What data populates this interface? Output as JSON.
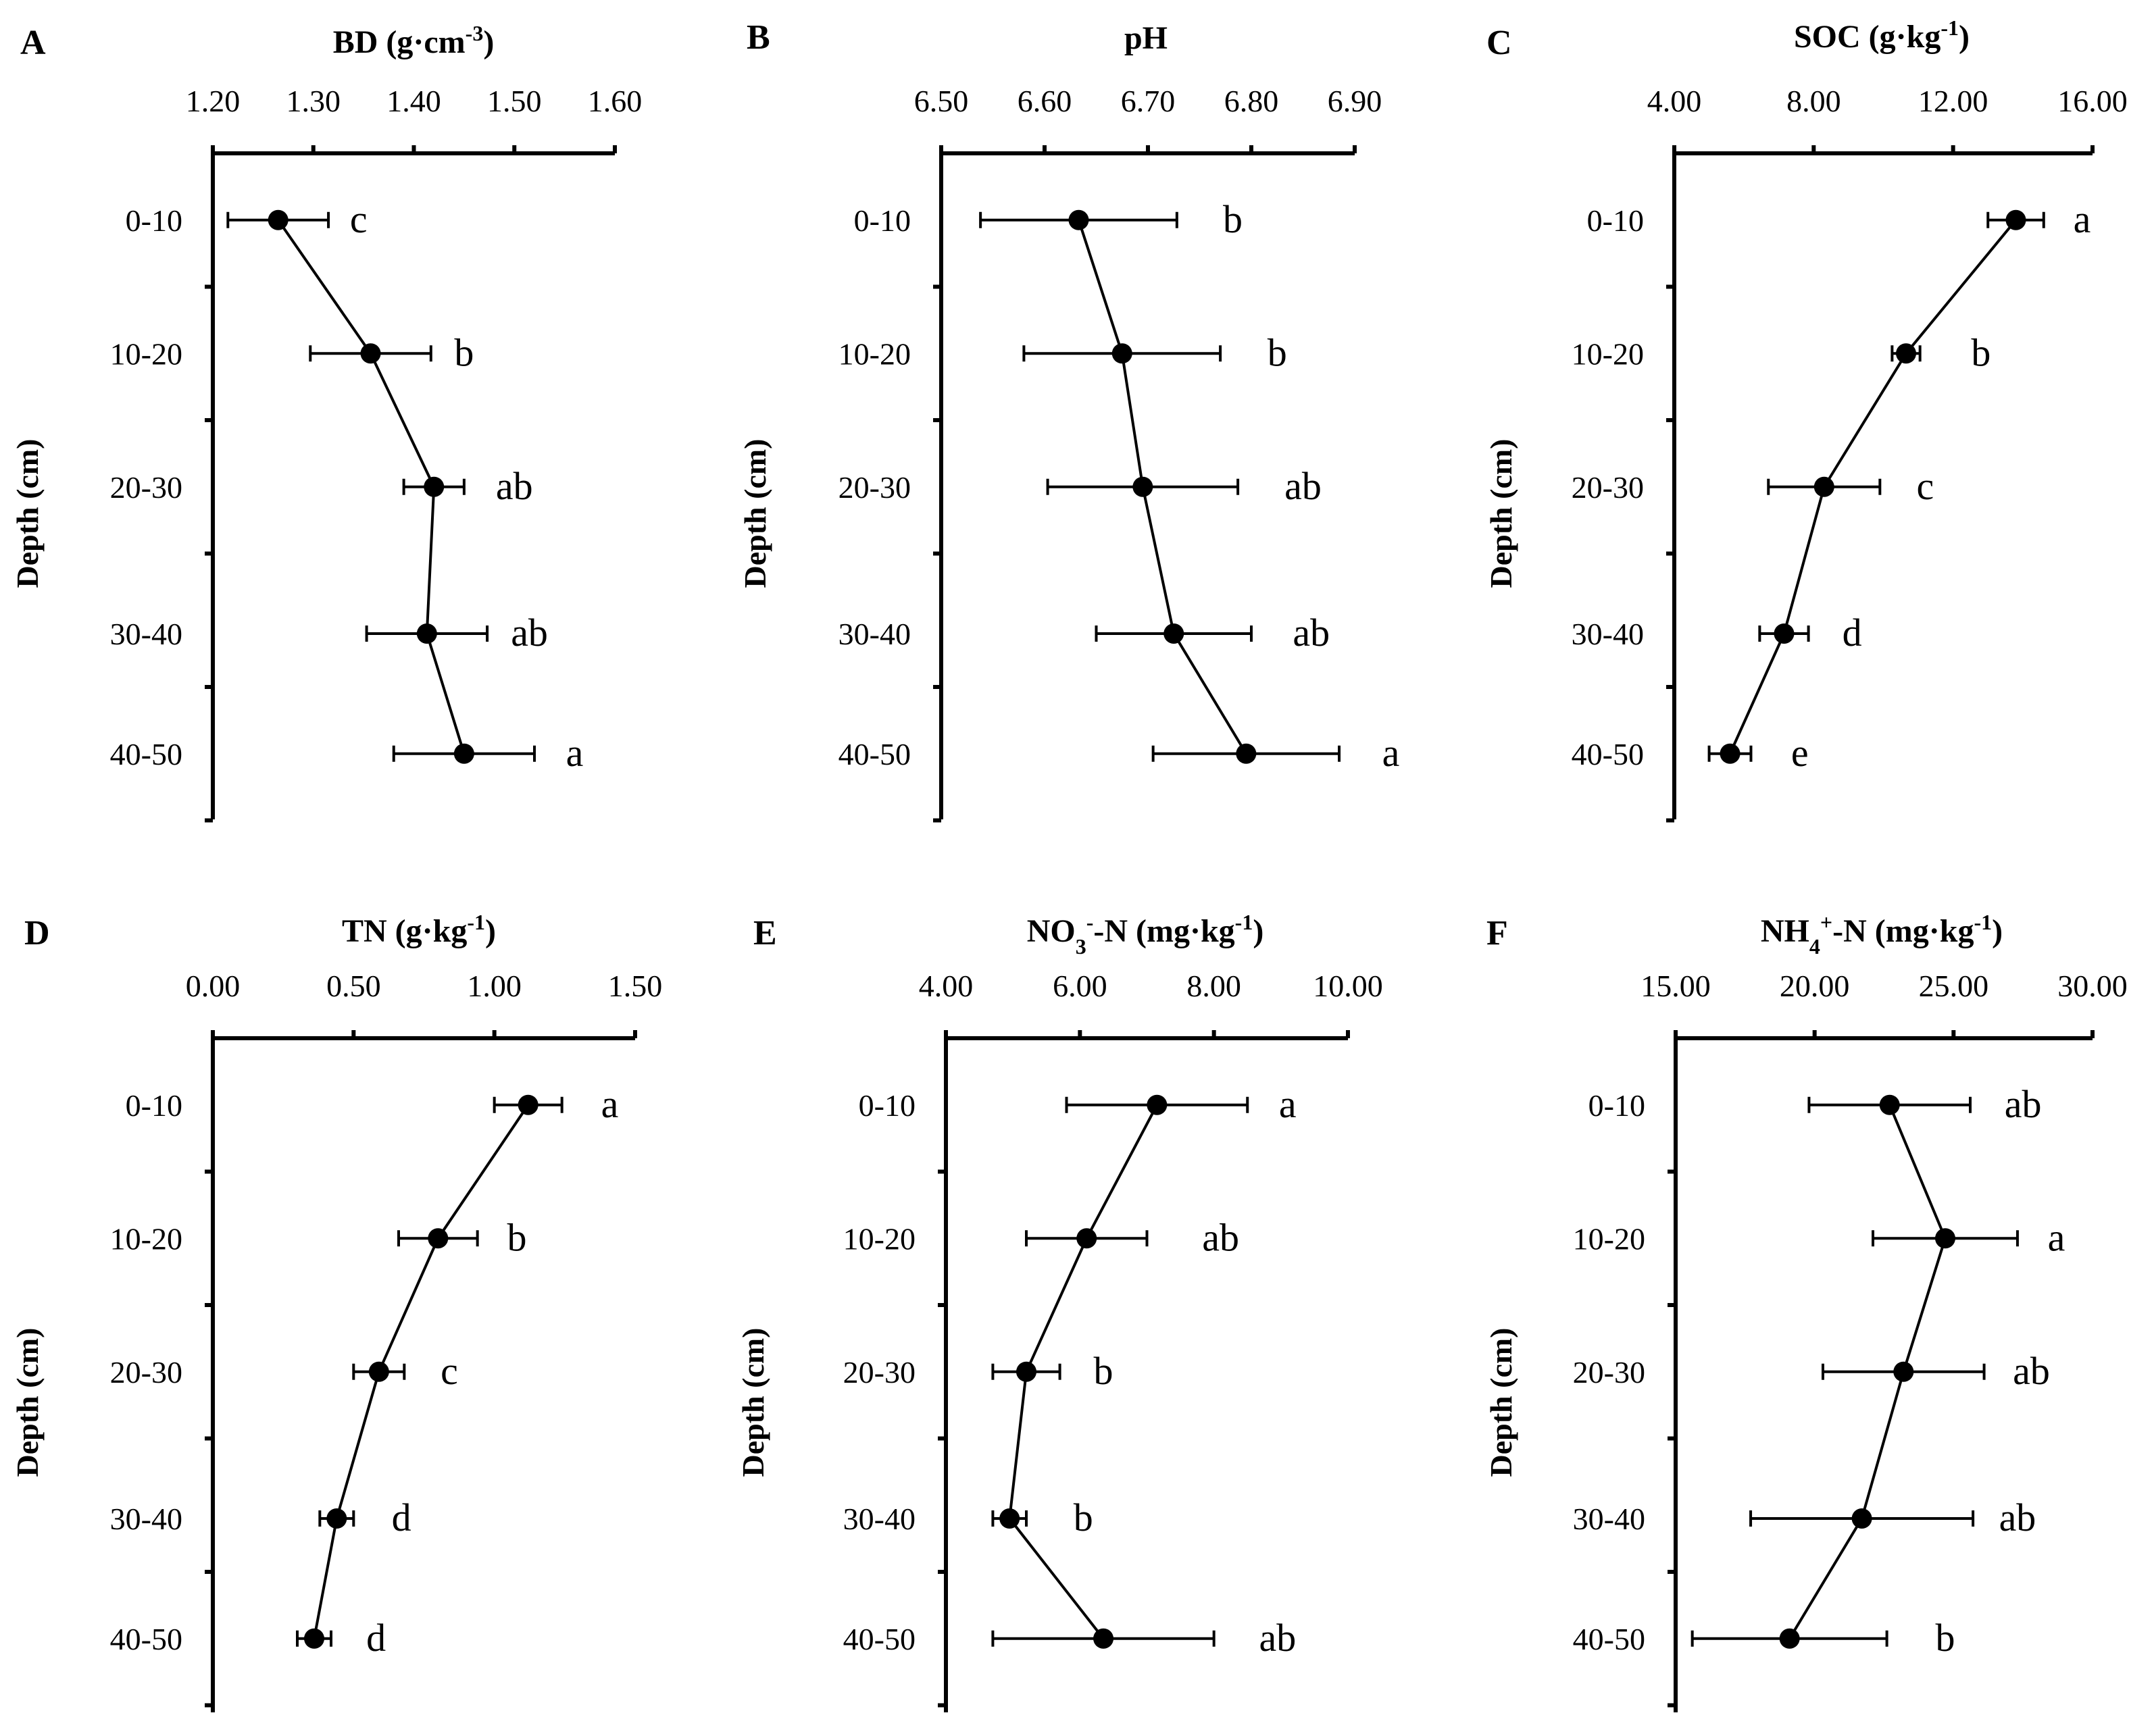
{
  "chart_data": [
    {
      "type": "line",
      "panel": "A",
      "title": "BD (g·cm⁻³)",
      "title_parts": [
        {
          "t": "BD (g·cm"
        },
        {
          "t": "-3",
          "sup": true
        },
        {
          "t": ")"
        }
      ],
      "xlabel": "BD (g·cm-3)",
      "ylabel": "Depth (cm)",
      "xlim": [
        1.2,
        1.6
      ],
      "xticks": [
        1.2,
        1.3,
        1.4,
        1.5,
        1.6
      ],
      "xtick_labels": [
        "1.20",
        "1.30",
        "1.40",
        "1.50",
        "1.60"
      ],
      "categories": [
        "0-10",
        "10-20",
        "20-30",
        "30-40",
        "40-50"
      ],
      "y_positions": [
        0.5,
        1.5,
        2.5,
        3.6,
        4.5
      ],
      "values": [
        1.265,
        1.357,
        1.42,
        1.413,
        1.45
      ],
      "errors": [
        0.05,
        0.06,
        0.03,
        0.06,
        0.07
      ],
      "sig_letters": [
        "c",
        "b",
        "ab",
        "ab",
        "a"
      ],
      "sig_x": [
        1.345,
        1.45,
        1.5,
        1.515,
        1.56
      ]
    },
    {
      "type": "line",
      "panel": "B",
      "title": "pH",
      "title_parts": [
        {
          "t": "pH"
        }
      ],
      "xlabel": "pH",
      "ylabel": "Depth (cm)",
      "xlim": [
        6.5,
        6.9
      ],
      "xticks": [
        6.5,
        6.6,
        6.7,
        6.8,
        6.9
      ],
      "xtick_labels": [
        "6.50",
        "6.60",
        "6.70",
        "6.80",
        "6.90"
      ],
      "categories": [
        "0-10",
        "10-20",
        "20-30",
        "30-40",
        "40-50"
      ],
      "y_positions": [
        0.5,
        1.5,
        2.5,
        3.6,
        4.5
      ],
      "values": [
        6.633,
        6.675,
        6.695,
        6.725,
        6.795
      ],
      "errors": [
        0.095,
        0.095,
        0.092,
        0.075,
        0.09
      ],
      "sig_letters": [
        "b",
        "b",
        "ab",
        "ab",
        "a"
      ],
      "sig_x": [
        6.782,
        6.825,
        6.85,
        6.858,
        6.935
      ]
    },
    {
      "type": "line",
      "panel": "C",
      "title": "SOC (g·kg⁻¹)",
      "title_parts": [
        {
          "t": "SOC (g·kg"
        },
        {
          "t": "-1",
          "sup": true
        },
        {
          "t": ")"
        }
      ],
      "xlabel": "SOC (g·kg-1)",
      "ylabel": "Depth (cm)",
      "xlim": [
        4.0,
        16.0
      ],
      "xticks": [
        4.0,
        8.0,
        12.0,
        16.0
      ],
      "xtick_labels": [
        "4.00",
        "8.00",
        "12.00",
        "16.00"
      ],
      "categories": [
        "0-10",
        "10-20",
        "20-30",
        "30-40",
        "40-50"
      ],
      "y_positions": [
        0.5,
        1.5,
        2.5,
        3.6,
        4.5
      ],
      "values": [
        13.8,
        10.65,
        8.3,
        7.15,
        5.6
      ],
      "errors": [
        0.8,
        0.4,
        1.6,
        0.7,
        0.6
      ],
      "sig_letters": [
        "a",
        "b",
        "c",
        "d",
        "e"
      ],
      "sig_x": [
        15.7,
        12.8,
        11.2,
        9.1,
        7.6
      ]
    },
    {
      "type": "line",
      "panel": "D",
      "title": "TN (g·kg⁻¹)",
      "title_parts": [
        {
          "t": "TN (g·kg"
        },
        {
          "t": "-1",
          "sup": true
        },
        {
          "t": ")"
        }
      ],
      "xlabel": "TN (g·kg-1)",
      "ylabel": "Depth (cm)",
      "xlim": [
        0.0,
        1.5
      ],
      "xticks": [
        0.0,
        0.5,
        1.0,
        1.5
      ],
      "xtick_labels": [
        "0.00",
        "0.50",
        "1.00",
        "1.50"
      ],
      "categories": [
        "0-10",
        "10-20",
        "20-30",
        "30-40",
        "40-50"
      ],
      "y_positions": [
        0.5,
        1.5,
        2.5,
        3.6,
        4.5
      ],
      "values": [
        1.12,
        0.8,
        0.59,
        0.44,
        0.36
      ],
      "errors": [
        0.12,
        0.14,
        0.09,
        0.06,
        0.06
      ],
      "sig_letters": [
        "a",
        "b",
        "c",
        "d",
        "d"
      ],
      "sig_x": [
        1.41,
        1.08,
        0.84,
        0.67,
        0.58
      ]
    },
    {
      "type": "line",
      "panel": "E",
      "title": "NO₃⁻-N (mg·kg⁻¹)",
      "title_parts": [
        {
          "t": "NO"
        },
        {
          "t": "3",
          "sub": true
        },
        {
          "t": "-",
          "sup": true
        },
        {
          "t": "-N (mg·kg"
        },
        {
          "t": "-1",
          "sup": true
        },
        {
          "t": ")"
        }
      ],
      "xlabel": "NO3--N (mg·kg-1)",
      "ylabel": "Depth (cm)",
      "xlim": [
        4.0,
        10.0
      ],
      "xticks": [
        4.0,
        6.0,
        8.0,
        10.0
      ],
      "xtick_labels": [
        "4.00",
        "6.00",
        "8.00",
        "10.00"
      ],
      "categories": [
        "0-10",
        "10-20",
        "20-30",
        "30-40",
        "40-50"
      ],
      "y_positions": [
        0.5,
        1.5,
        2.5,
        3.6,
        4.5
      ],
      "values": [
        7.15,
        6.1,
        5.2,
        4.95,
        6.35
      ],
      "errors": [
        1.35,
        0.9,
        0.5,
        0.25,
        1.65
      ],
      "sig_letters": [
        "a",
        "ab",
        "b",
        "b",
        "ab"
      ],
      "sig_x": [
        9.1,
        8.1,
        6.35,
        6.05,
        8.95
      ]
    },
    {
      "type": "line",
      "panel": "F",
      "title": "NH₄⁺-N (mg·kg⁻¹)",
      "title_parts": [
        {
          "t": "NH"
        },
        {
          "t": "4",
          "sub": true
        },
        {
          "t": "+",
          "sup": true
        },
        {
          "t": "-N (mg·kg"
        },
        {
          "t": "-1",
          "sup": true
        },
        {
          "t": ")"
        }
      ],
      "xlabel": "NH4+-N (mg·kg-1)",
      "ylabel": "Depth (cm)",
      "xlim": [
        15.0,
        30.0
      ],
      "xticks": [
        15.0,
        20.0,
        25.0,
        30.0
      ],
      "xtick_labels": [
        "15.00",
        "20.00",
        "25.00",
        "30.00"
      ],
      "categories": [
        "0-10",
        "10-20",
        "20-30",
        "30-40",
        "40-50"
      ],
      "y_positions": [
        0.5,
        1.5,
        2.5,
        3.6,
        4.5
      ],
      "values": [
        22.7,
        24.7,
        23.2,
        21.7,
        19.1
      ],
      "errors": [
        2.9,
        2.6,
        2.9,
        4.0,
        3.5
      ],
      "sig_letters": [
        "ab",
        "a",
        "ab",
        "ab",
        "b"
      ],
      "sig_x": [
        27.5,
        28.7,
        27.8,
        27.3,
        24.7
      ]
    }
  ]
}
